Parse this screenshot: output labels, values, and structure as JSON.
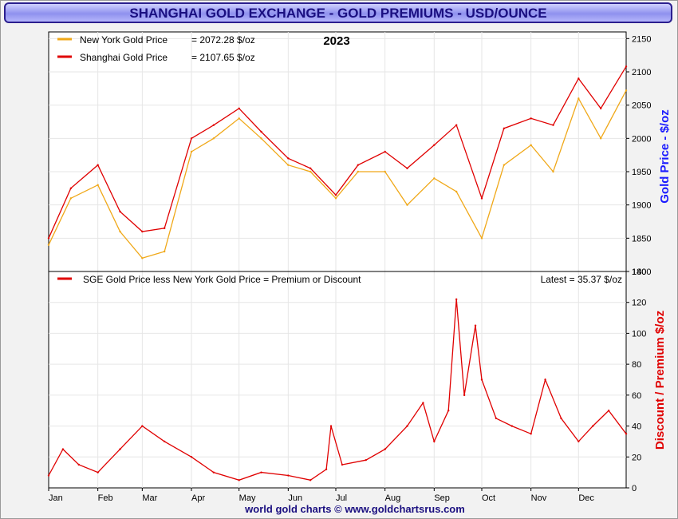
{
  "title": "SHANGHAI GOLD EXCHANGE - GOLD PREMIUMS - USD/OUNCE",
  "footer": "world gold charts © www.goldchartsrus.com",
  "colors": {
    "ny": "#f0a818",
    "sge": "#e00000",
    "title_text": "#1a0f80",
    "footer_text": "#1a0f80"
  },
  "chart_data": [
    {
      "type": "line",
      "year_label": "2023",
      "ylabel": "Gold Price - $/oz",
      "ylim": [
        1800,
        2160
      ],
      "yticks": [
        "1800",
        "1850",
        "1900",
        "1950",
        "2000",
        "2050",
        "2100",
        "2150"
      ],
      "xlabel_months": [
        "Jan",
        "Feb",
        "Mar",
        "Apr",
        "May",
        "Jun",
        "Jul",
        "Aug",
        "Sep",
        "Oct",
        "Nov",
        "Dec"
      ],
      "grid": true,
      "legend": [
        {
          "name": "New York Gold Price",
          "value_text": "= 2072.28 $/oz"
        },
        {
          "name": "Shanghai Gold Price",
          "value_text": "= 2107.65 $/oz"
        }
      ],
      "x": [
        "2023-01-01",
        "2023-01-15",
        "2023-02-01",
        "2023-02-15",
        "2023-03-01",
        "2023-03-15",
        "2023-04-01",
        "2023-04-15",
        "2023-05-01",
        "2023-05-15",
        "2023-06-01",
        "2023-06-15",
        "2023-07-01",
        "2023-07-15",
        "2023-08-01",
        "2023-08-15",
        "2023-09-01",
        "2023-09-15",
        "2023-10-01",
        "2023-10-15",
        "2023-11-01",
        "2023-11-15",
        "2023-12-01",
        "2023-12-15",
        "2023-12-31"
      ],
      "series": [
        {
          "name": "New York Gold Price",
          "values": [
            1840,
            1910,
            1930,
            1860,
            1820,
            1830,
            1980,
            2000,
            2030,
            2000,
            1960,
            1950,
            1910,
            1950,
            1950,
            1900,
            1940,
            1920,
            1850,
            1960,
            1990,
            1950,
            2060,
            2000,
            2072
          ]
        },
        {
          "name": "Shanghai Gold Price",
          "values": [
            1850,
            1925,
            1960,
            1890,
            1860,
            1865,
            2000,
            2020,
            2045,
            2010,
            1970,
            1955,
            1915,
            1960,
            1980,
            1955,
            1990,
            2020,
            1910,
            2015,
            2030,
            2020,
            2090,
            2045,
            2108
          ]
        }
      ]
    },
    {
      "type": "line",
      "subtitle": "SGE Gold Price less New York Gold Price = Premium or Discount",
      "latest_text": "Latest = 35.37 $/oz",
      "ylabel": "Discount / Premium $/oz",
      "ylim": [
        0,
        140
      ],
      "yticks": [
        "0",
        "20",
        "40",
        "60",
        "80",
        "100",
        "120",
        "140"
      ],
      "grid": true,
      "x": [
        "2023-01-01",
        "2023-01-10",
        "2023-01-20",
        "2023-02-01",
        "2023-02-15",
        "2023-03-01",
        "2023-03-15",
        "2023-04-01",
        "2023-04-15",
        "2023-05-01",
        "2023-05-15",
        "2023-06-01",
        "2023-06-15",
        "2023-06-25",
        "2023-06-28",
        "2023-07-05",
        "2023-07-20",
        "2023-08-01",
        "2023-08-15",
        "2023-08-25",
        "2023-09-01",
        "2023-09-10",
        "2023-09-15",
        "2023-09-20",
        "2023-09-27",
        "2023-10-01",
        "2023-10-10",
        "2023-10-20",
        "2023-11-01",
        "2023-11-10",
        "2023-11-20",
        "2023-12-01",
        "2023-12-10",
        "2023-12-20",
        "2023-12-31"
      ],
      "series": [
        {
          "name": "SGE Gold Price less New York Gold Price = Premium or Discount",
          "values": [
            8,
            25,
            15,
            10,
            25,
            40,
            30,
            20,
            10,
            5,
            10,
            8,
            5,
            12,
            40,
            15,
            18,
            25,
            40,
            55,
            30,
            50,
            122,
            60,
            105,
            70,
            45,
            40,
            35,
            70,
            45,
            30,
            40,
            50,
            35
          ]
        }
      ]
    }
  ]
}
